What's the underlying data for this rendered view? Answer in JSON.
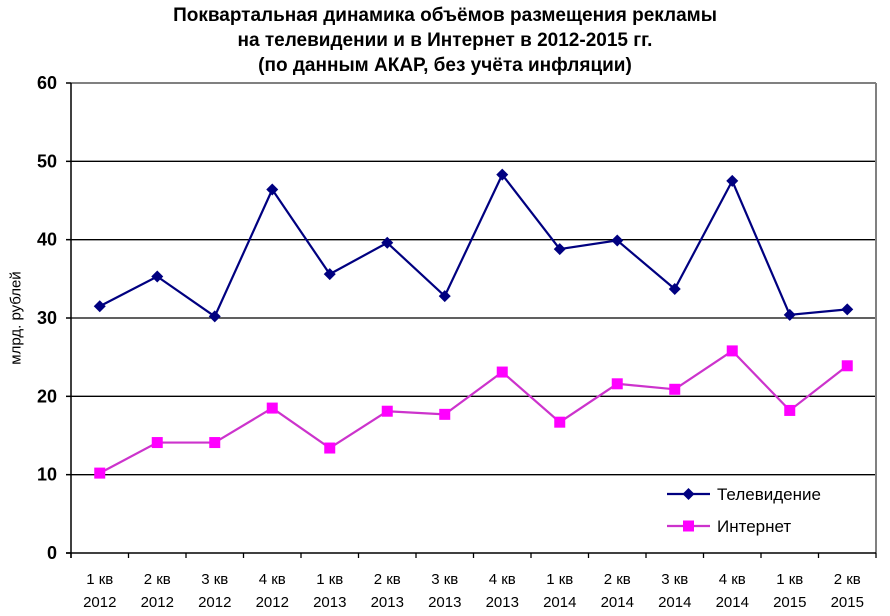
{
  "title": {
    "line1": "Поквартальная динамика объёмов размещения рекламы",
    "line2": "на телевидении и в Интернет в 2012-2015 гг.",
    "line3": "(по данным АКАР, без учёта инфляции)"
  },
  "colors": {
    "tv": "#000080",
    "internet": "#ff00ff",
    "internet_line": "#cc33cc",
    "grid": "#000000",
    "frame": "#808080"
  },
  "chart_data": {
    "type": "line",
    "title": "Поквартальная динамика объёмов размещения рекламы на телевидении и в Интернет в 2012-2015 гг. (по данным АКАР, без учёта инфляции)",
    "xlabel": "",
    "ylabel": "млрд. рублей",
    "ylim": [
      0,
      60
    ],
    "yticks": [
      0,
      10,
      20,
      30,
      40,
      50,
      60
    ],
    "grid": true,
    "legend_position": "lower right inside",
    "categories": [
      [
        "1 кв",
        "2012"
      ],
      [
        "2 кв",
        "2012"
      ],
      [
        "3 кв",
        "2012"
      ],
      [
        "4 кв",
        "2012"
      ],
      [
        "1 кв",
        "2013"
      ],
      [
        "2 кв",
        "2013"
      ],
      [
        "3 кв",
        "2013"
      ],
      [
        "4 кв",
        "2013"
      ],
      [
        "1 кв",
        "2014"
      ],
      [
        "2 кв",
        "2014"
      ],
      [
        "3 кв",
        "2014"
      ],
      [
        "4 кв",
        "2014"
      ],
      [
        "1 кв",
        "2015"
      ],
      [
        "2 кв",
        "2015"
      ]
    ],
    "series": [
      {
        "name": "Телевидение",
        "marker": "diamond",
        "values": [
          31.5,
          35.3,
          30.2,
          46.4,
          35.6,
          39.6,
          32.8,
          48.3,
          38.8,
          39.9,
          33.7,
          47.5,
          30.4,
          31.1
        ]
      },
      {
        "name": "Интернет",
        "marker": "square",
        "values": [
          10.2,
          14.1,
          14.1,
          18.5,
          13.4,
          18.1,
          17.7,
          23.1,
          16.7,
          21.6,
          20.9,
          25.8,
          18.2,
          23.9
        ]
      }
    ]
  }
}
